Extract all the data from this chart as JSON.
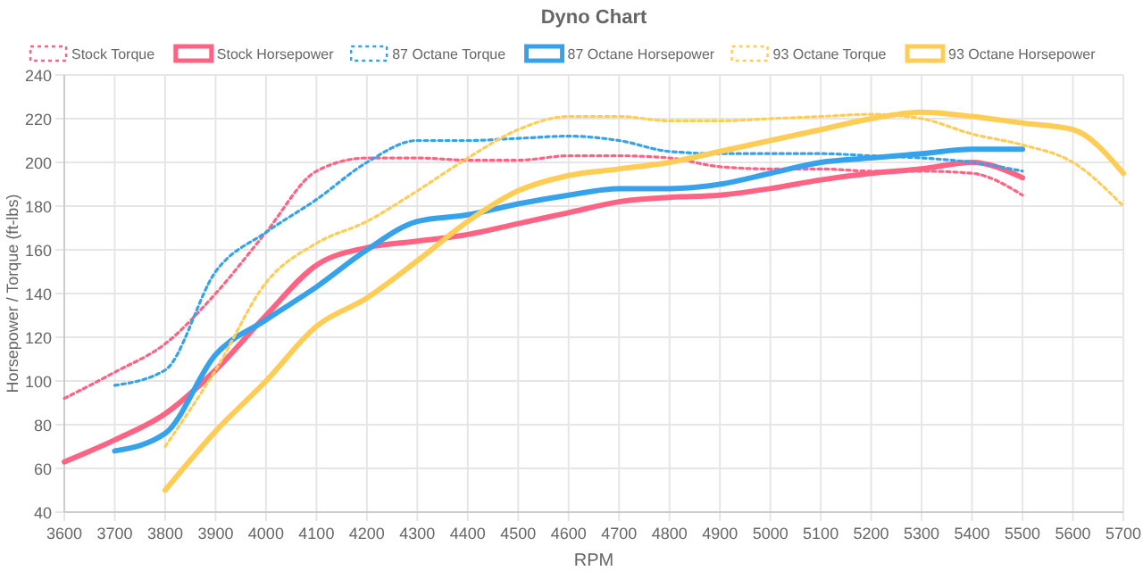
{
  "chart_data": {
    "type": "line",
    "title": "Dyno Chart",
    "xlabel": "RPM",
    "ylabel": "Horsepower / Torque (ft-lbs)",
    "xlim": [
      3600,
      5700
    ],
    "xticks": [
      3600,
      3700,
      3800,
      3900,
      4000,
      4100,
      4200,
      4300,
      4400,
      4500,
      4600,
      4700,
      4800,
      4900,
      5000,
      5100,
      5200,
      5300,
      5400,
      5500,
      5600,
      5700
    ],
    "ylim": [
      40,
      240
    ],
    "yticks": [
      40,
      60,
      80,
      100,
      120,
      140,
      160,
      180,
      200,
      220,
      240
    ],
    "grid": true,
    "legend": "top",
    "marker": "none",
    "series": [
      {
        "name": "Stock Torque",
        "color": "#ff6384",
        "line_style": "dotted",
        "x": [
          3600,
          3700,
          3800,
          3900,
          4000,
          4100,
          4200,
          4300,
          4400,
          4500,
          4600,
          4700,
          4800,
          4900,
          5000,
          5100,
          5200,
          5300,
          5400,
          5500
        ],
        "values": [
          92,
          104,
          117,
          140,
          168,
          196,
          202,
          202,
          201,
          201,
          203,
          203,
          202,
          198,
          197,
          197,
          196,
          196,
          195,
          185
        ]
      },
      {
        "name": "Stock Horsepower",
        "color": "#ff6384",
        "line_style": "solid",
        "x": [
          3600,
          3700,
          3800,
          3900,
          4000,
          4100,
          4200,
          4300,
          4400,
          4500,
          4600,
          4700,
          4800,
          4900,
          5000,
          5100,
          5200,
          5300,
          5400,
          5500
        ],
        "values": [
          63,
          73,
          85,
          105,
          130,
          153,
          161,
          164,
          167,
          172,
          177,
          182,
          184,
          185,
          188,
          192,
          195,
          197,
          200,
          193
        ]
      },
      {
        "name": "87 Octane Torque",
        "color": "#36a2eb",
        "line_style": "dotted",
        "x": [
          3700,
          3800,
          3900,
          4000,
          4100,
          4200,
          4300,
          4400,
          4500,
          4600,
          4700,
          4800,
          4900,
          5000,
          5100,
          5200,
          5300,
          5400,
          5500
        ],
        "values": [
          98,
          105,
          150,
          168,
          183,
          200,
          210,
          210,
          211,
          212,
          210,
          205,
          204,
          204,
          204,
          203,
          202,
          200,
          196
        ]
      },
      {
        "name": "87 Octane Horsepower",
        "color": "#36a2eb",
        "line_style": "solid",
        "x": [
          3700,
          3800,
          3900,
          4000,
          4100,
          4200,
          4300,
          4400,
          4500,
          4600,
          4700,
          4800,
          4900,
          5000,
          5100,
          5200,
          5300,
          5400,
          5500
        ],
        "values": [
          68,
          76,
          112,
          128,
          143,
          160,
          173,
          176,
          181,
          185,
          188,
          188,
          190,
          195,
          200,
          202,
          204,
          206,
          206
        ]
      },
      {
        "name": "93 Octane Torque",
        "color": "#ffcd56",
        "line_style": "dotted",
        "x": [
          3800,
          3900,
          4000,
          4100,
          4200,
          4300,
          4400,
          4500,
          4600,
          4700,
          4800,
          4900,
          5000,
          5100,
          5200,
          5300,
          5400,
          5500,
          5600,
          5700
        ],
        "values": [
          70,
          105,
          145,
          163,
          173,
          187,
          202,
          215,
          221,
          221,
          219,
          219,
          220,
          221,
          222,
          220,
          213,
          208,
          200,
          180
        ]
      },
      {
        "name": "93 Octane Horsepower",
        "color": "#ffcd56",
        "line_style": "solid",
        "x": [
          3800,
          3900,
          4000,
          4100,
          4200,
          4300,
          4400,
          4500,
          4600,
          4700,
          4800,
          4900,
          5000,
          5100,
          5200,
          5300,
          5400,
          5500,
          5600,
          5700
        ],
        "values": [
          50,
          77,
          100,
          125,
          138,
          155,
          173,
          187,
          194,
          197,
          200,
          205,
          210,
          215,
          220,
          223,
          221,
          218,
          215,
          195
        ]
      }
    ]
  }
}
